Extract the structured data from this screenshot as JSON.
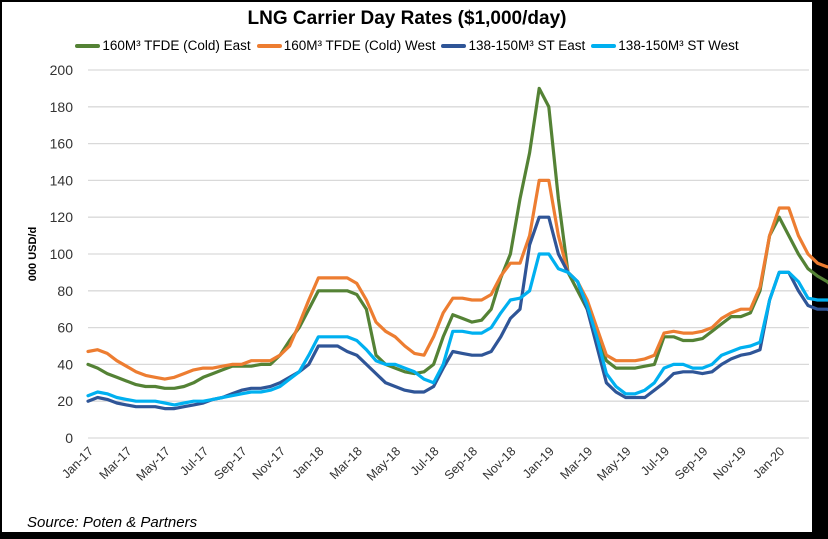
{
  "chart_data": {
    "type": "line",
    "title": "LNG Carrier Day Rates ($1,000/day)",
    "xlabel": "",
    "ylabel": "000 USD/d",
    "ylim": [
      0,
      200
    ],
    "yticks": [
      0,
      20,
      40,
      60,
      80,
      100,
      120,
      140,
      160,
      180,
      200
    ],
    "grid": true,
    "legend_position": "top",
    "source": "Source: Poten & Partners",
    "x_start": "Jan-17",
    "x_step": "half-month",
    "xtick_labels": [
      "Jan-17",
      "Mar-17",
      "May-17",
      "Jul-17",
      "Sep-17",
      "Nov-17",
      "Jan-18",
      "Mar-18",
      "May-18",
      "Jul-18",
      "Sep-18",
      "Nov-18",
      "Jan-19",
      "Mar-19",
      "May-19",
      "Jul-19",
      "Sep-19",
      "Nov-19",
      "Jan-20"
    ],
    "series": [
      {
        "name": "160M³ TFDE (Cold) East",
        "color": "#548235",
        "values": [
          40,
          38,
          35,
          33,
          31,
          29,
          28,
          28,
          27,
          27,
          28,
          30,
          33,
          35,
          37,
          39,
          39,
          39,
          40,
          40,
          45,
          53,
          60,
          70,
          80,
          80,
          80,
          80,
          78,
          70,
          45,
          40,
          38,
          36,
          35,
          36,
          40,
          55,
          67,
          65,
          63,
          64,
          70,
          87,
          100,
          130,
          155,
          190,
          180,
          130,
          90,
          80,
          70,
          55,
          42,
          38,
          38,
          38,
          39,
          40,
          55,
          55,
          53,
          53,
          54,
          58,
          62,
          66,
          66,
          68,
          80,
          110,
          120,
          110,
          100,
          92,
          88,
          85,
          80,
          75,
          65
        ]
      },
      {
        "name": "160M³ TFDE (Cold) West",
        "color": "#ED7D31",
        "values": [
          47,
          48,
          46,
          42,
          39,
          36,
          34,
          33,
          32,
          33,
          35,
          37,
          38,
          38,
          39,
          40,
          40,
          42,
          42,
          42,
          45,
          50,
          62,
          75,
          87,
          87,
          87,
          87,
          84,
          75,
          63,
          58,
          55,
          50,
          46,
          45,
          55,
          68,
          76,
          76,
          75,
          75,
          78,
          88,
          95,
          95,
          110,
          140,
          140,
          110,
          90,
          85,
          75,
          60,
          45,
          42,
          42,
          42,
          43,
          45,
          57,
          58,
          57,
          57,
          58,
          60,
          65,
          68,
          70,
          70,
          82,
          110,
          125,
          125,
          110,
          100,
          95,
          93,
          94,
          92,
          75
        ]
      },
      {
        "name": "138-150M³ ST East",
        "color": "#2F5597",
        "values": [
          20,
          22,
          21,
          19,
          18,
          17,
          17,
          17,
          16,
          16,
          17,
          18,
          19,
          21,
          22,
          24,
          26,
          27,
          27,
          28,
          30,
          33,
          36,
          40,
          50,
          50,
          50,
          47,
          45,
          40,
          35,
          30,
          28,
          26,
          25,
          25,
          28,
          38,
          47,
          46,
          45,
          45,
          47,
          55,
          65,
          70,
          105,
          120,
          120,
          100,
          90,
          85,
          70,
          50,
          30,
          25,
          22,
          22,
          22,
          26,
          30,
          35,
          36,
          36,
          35,
          36,
          40,
          43,
          45,
          46,
          48,
          75,
          90,
          90,
          80,
          72,
          70,
          70,
          68,
          62,
          50
        ]
      },
      {
        "name": "138-150M³ ST West",
        "color": "#00B0F0",
        "values": [
          23,
          25,
          24,
          22,
          21,
          20,
          20,
          20,
          19,
          18,
          19,
          20,
          20,
          21,
          22,
          23,
          24,
          25,
          25,
          26,
          28,
          32,
          36,
          45,
          55,
          55,
          55,
          55,
          53,
          48,
          42,
          40,
          40,
          38,
          36,
          32,
          30,
          40,
          58,
          58,
          57,
          57,
          60,
          68,
          75,
          76,
          80,
          100,
          100,
          92,
          90,
          85,
          72,
          55,
          35,
          28,
          24,
          24,
          26,
          30,
          38,
          40,
          40,
          38,
          38,
          40,
          45,
          47,
          49,
          50,
          52,
          75,
          90,
          90,
          85,
          76,
          75,
          75,
          75,
          70,
          60
        ]
      }
    ]
  }
}
